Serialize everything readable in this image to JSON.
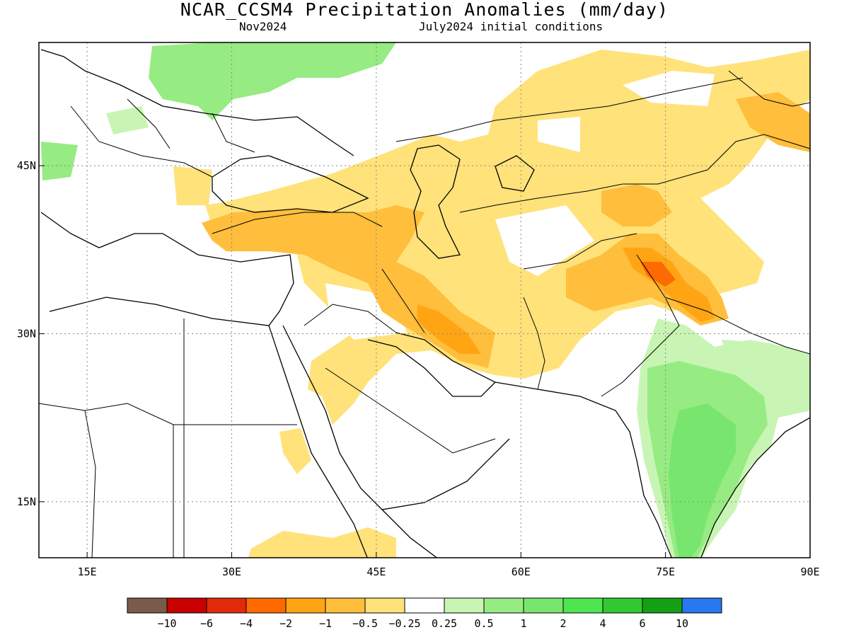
{
  "header": {
    "title": "NCAR_CCSM4 Precipitation Anomalies (mm/day)",
    "valid_month": "Nov2024",
    "init_conditions": "July2024 initial conditions"
  },
  "map": {
    "lon_range": [
      10,
      90
    ],
    "lat_range": [
      10,
      56
    ],
    "lat_ticks": [
      {
        "value": 45,
        "label": "45N"
      },
      {
        "value": 30,
        "label": "30N"
      },
      {
        "value": 15,
        "label": "15N"
      }
    ],
    "lon_ticks": [
      {
        "value": 15,
        "label": "15E"
      },
      {
        "value": 30,
        "label": "30E"
      },
      {
        "value": 45,
        "label": "45E"
      },
      {
        "value": 60,
        "label": "60E"
      },
      {
        "value": 75,
        "label": "75E"
      },
      {
        "value": 90,
        "label": "90E"
      }
    ],
    "grid": "dotted"
  },
  "colorbar": {
    "colors": [
      "#7a5a4a",
      "#c80000",
      "#e02a0a",
      "#ff6a00",
      "#ffa514",
      "#ffbe3c",
      "#ffe27a",
      "#ffffff",
      "#c8f5b4",
      "#96eb82",
      "#78e66e",
      "#4ee650",
      "#32c832",
      "#14a014",
      "#2878f0"
    ],
    "labels": [
      "−10",
      "−6",
      "−4",
      "−2",
      "−1",
      "−0.5",
      "−0.25",
      "0.25",
      "0.5",
      "1",
      "2",
      "4",
      "6",
      "10"
    ]
  },
  "anomaly_regions": [
    {
      "name": "caucasus-iran-dry",
      "level": "-0.5",
      "color": "#ffbe3c"
    },
    {
      "name": "himalaya-dry",
      "level": "-2",
      "color": "#ff6a00"
    },
    {
      "name": "india-wet",
      "level": "2",
      "color": "#78e66e"
    }
  ]
}
